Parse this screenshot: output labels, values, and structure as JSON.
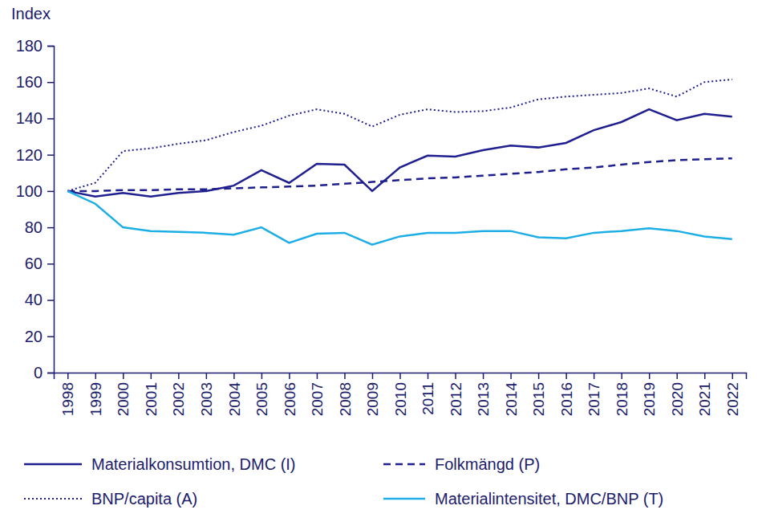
{
  "chart_data": {
    "type": "line",
    "y_label": "Index",
    "categories": [
      "1998",
      "1999",
      "2000",
      "2001",
      "2002",
      "2003",
      "2004",
      "2005",
      "2006",
      "2007",
      "2008",
      "2009",
      "2010",
      "2011",
      "2012",
      "2013",
      "2014",
      "2015",
      "2016",
      "2017",
      "2018",
      "2019",
      "2020",
      "2021",
      "2022"
    ],
    "series": [
      {
        "name": "Materialkonsumtion, DMC (I)",
        "color": "#1f1f8f",
        "line_style": "solid",
        "values": [
          100,
          97,
          99,
          97,
          99,
          100,
          103,
          111.5,
          104.5,
          115,
          114.5,
          100,
          113,
          119.5,
          119,
          122.5,
          125,
          124,
          126.5,
          133.5,
          138,
          145,
          139,
          142.5,
          141
        ]
      },
      {
        "name": "Folkmängd (P)",
        "color": "#1f1f8f",
        "line_style": "dashed",
        "values": [
          100,
          100,
          100.5,
          100.5,
          101,
          101,
          101.5,
          102,
          102.5,
          103,
          104,
          105,
          106,
          107,
          107.5,
          108.5,
          109.5,
          110.5,
          112,
          113,
          114.5,
          116,
          117,
          117.5,
          118
        ]
      },
      {
        "name": "BNP/capita (A)",
        "color": "#1f1f8f",
        "line_style": "dotted",
        "values": [
          100,
          104.5,
          122,
          123.5,
          126,
          128,
          132.5,
          136,
          141.5,
          145,
          142.5,
          135.5,
          142,
          145,
          143.5,
          144,
          146,
          150.5,
          152,
          153,
          154,
          156.5,
          152,
          160,
          161.5
        ]
      },
      {
        "name": "Materialintensitet, DMC/BNP (T)",
        "color": "#1eaee6",
        "line_style": "solid",
        "values": [
          100,
          93,
          80,
          78,
          77.5,
          77,
          76,
          80,
          71.5,
          76.5,
          77,
          70.5,
          75,
          77,
          77,
          78,
          78,
          74.5,
          74,
          77,
          78,
          79.5,
          78,
          75,
          73.5
        ]
      }
    ],
    "ylim": [
      0,
      180
    ],
    "yticks": [
      0,
      20,
      40,
      60,
      80,
      100,
      120,
      140,
      160,
      180
    ],
    "grid": false,
    "legend": "bottom"
  }
}
